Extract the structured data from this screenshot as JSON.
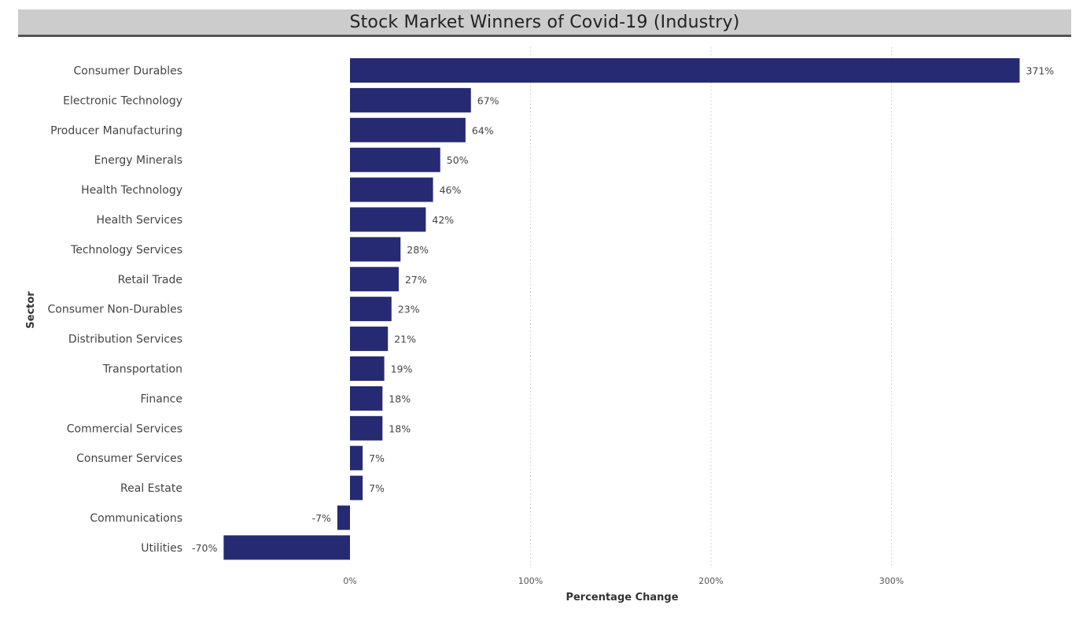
{
  "chart_data": {
    "type": "bar",
    "orientation": "horizontal",
    "title": "Stock Market Winners of Covid-19 (Industry)",
    "xlabel": "Percentage Change",
    "ylabel": "Sector",
    "categories": [
      "Consumer Durables",
      "Electronic Technology",
      "Producer Manufacturing",
      "Energy Minerals",
      "Health Technology",
      "Health Services",
      "Technology Services",
      "Retail Trade",
      "Consumer Non-Durables",
      "Distribution Services",
      "Transportation",
      "Finance",
      "Commercial Services",
      "Consumer Services",
      "Real Estate",
      "Communications",
      "Utilities"
    ],
    "values": [
      371,
      67,
      64,
      50,
      46,
      42,
      28,
      27,
      23,
      21,
      19,
      18,
      18,
      7,
      7,
      -7,
      -70
    ],
    "data_labels": [
      "371%",
      "67%",
      "64%",
      "50%",
      "46%",
      "42%",
      "28%",
      "27%",
      "23%",
      "21%",
      "19%",
      "18%",
      "18%",
      "7%",
      "7%",
      "-7%",
      "-70%"
    ],
    "xticks": [
      0,
      100,
      200,
      300
    ],
    "xtick_labels": [
      "0%",
      "100%",
      "200%",
      "300%"
    ],
    "xlim": [
      -70,
      371
    ],
    "grid": true,
    "bar_color": "#262A72"
  }
}
